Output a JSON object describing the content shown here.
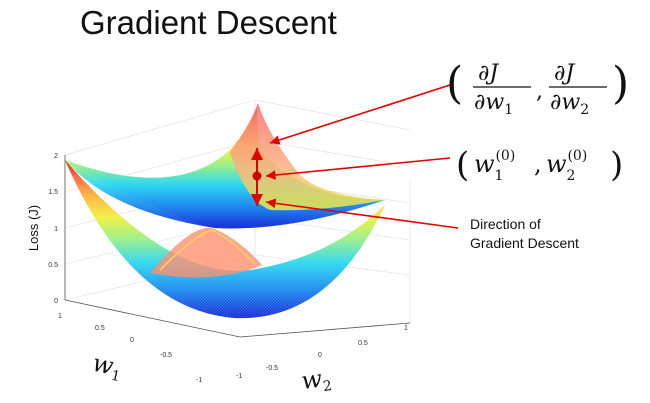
{
  "title": "Gradient Descent",
  "axes": {
    "z_label": "Loss (J)",
    "x_label": "w",
    "x_label_sub": "1",
    "y_label": "w",
    "y_label_sub": "2",
    "z_ticks": [
      "2",
      "1.5",
      "1",
      "0.5",
      "0"
    ],
    "w1_ticks": [
      "1",
      "0.5",
      "0",
      "-0.5",
      "-1"
    ],
    "w2_ticks": [
      "-1",
      "-0.5",
      "0",
      "0.5",
      "1"
    ]
  },
  "annotations": {
    "gradient": {
      "partial": "∂",
      "numerator": "J",
      "denominator_var": "w",
      "sub1": "1",
      "sub2": "2",
      "comma": ","
    },
    "point": {
      "var": "w",
      "sub1": "1",
      "sub2": "2",
      "sup": "(0)",
      "comma": ","
    },
    "direction_line1": "Direction of",
    "direction_line2": "Gradient Descent"
  },
  "colors": {
    "arrow": "#e00000",
    "point": "#cc0000"
  }
}
